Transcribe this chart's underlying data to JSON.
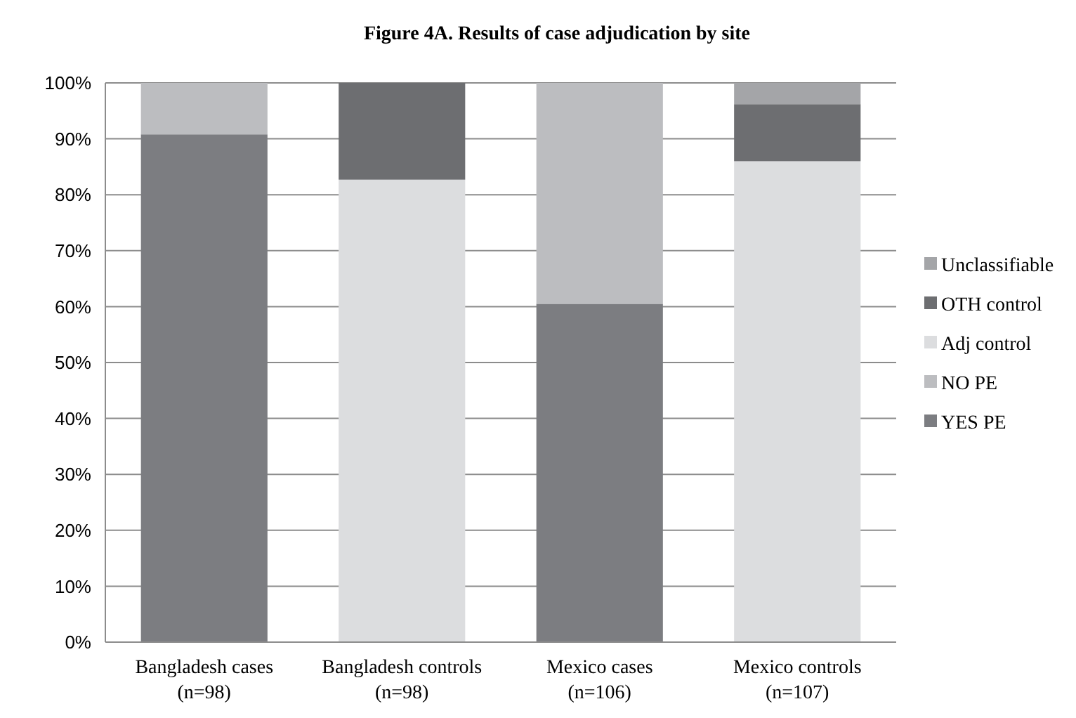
{
  "chart_data": {
    "type": "bar",
    "title": "Figure 4A. Results of case adjudication by site",
    "stacked": true,
    "categories": [
      "Bangladesh cases\n(n=98)",
      "Bangladesh controls\n(n=98)",
      "Mexico cases\n(n=106)",
      "Mexico controls\n(n=107)"
    ],
    "series": [
      {
        "name": "YES PE",
        "color": "#7c7d81",
        "values": [
          90.8,
          0,
          60.5,
          0
        ]
      },
      {
        "name": "NO PE",
        "color": "#bcbdc0",
        "values": [
          9.2,
          0,
          39.5,
          0
        ]
      },
      {
        "name": "Adj control",
        "color": "#dcdddf",
        "values": [
          0,
          82.7,
          0,
          86
        ]
      },
      {
        "name": "OTH control",
        "color": "#6d6e71",
        "values": [
          0,
          17.3,
          0,
          10.2
        ]
      },
      {
        "name": "Unclassifiable",
        "color": "#a4a5a8",
        "values": [
          0,
          0,
          0,
          3.8
        ]
      }
    ],
    "ylim": [
      0,
      100
    ],
    "yticks": [
      {
        "value": 0,
        "label": "0%"
      },
      {
        "value": 10,
        "label": "10%"
      },
      {
        "value": 20,
        "label": "20%"
      },
      {
        "value": 30,
        "label": "30%"
      },
      {
        "value": 40,
        "label": "40%"
      },
      {
        "value": 50,
        "label": "50%"
      },
      {
        "value": 60,
        "label": "60%"
      },
      {
        "value": 70,
        "label": "70%"
      },
      {
        "value": 80,
        "label": "80%"
      },
      {
        "value": 90,
        "label": "90%"
      },
      {
        "value": 100,
        "label": "100%"
      }
    ],
    "grid": "y",
    "legend": "right"
  }
}
